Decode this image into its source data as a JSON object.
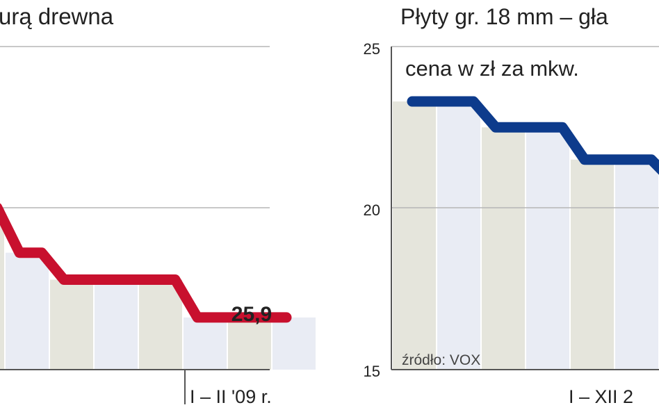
{
  "colors": {
    "band_gray": "#e5e5dc",
    "band_blue": "#e9ecf4",
    "grid": "#b5b5b5",
    "axis": "#555555",
    "text": "#222222",
    "left_series": "#c8102e",
    "right_series": "#0d3b8c"
  },
  "chart_data": [
    {
      "type": "line",
      "title": "urą drewna",
      "x_label": "I – II '09 r.",
      "value_label": "25,9",
      "grid": true,
      "series": [
        {
          "values": [
            32.0,
            29.5,
            28.0,
            28.0,
            28.0,
            25.9,
            25.9,
            25.9
          ]
        }
      ]
    },
    {
      "type": "line",
      "title": "Płyty gr. 18 mm – gła",
      "subtitle": "cena w zł za mkw.",
      "source": "źródło: VOX",
      "x_label": "I – XII 2",
      "ylim": [
        15,
        25
      ],
      "yticks": [
        "25",
        "20",
        "15"
      ],
      "grid": true,
      "series": [
        {
          "values": [
            23.3,
            23.3,
            22.5,
            22.5,
            21.5,
            21.5,
            20.8
          ]
        }
      ]
    }
  ]
}
